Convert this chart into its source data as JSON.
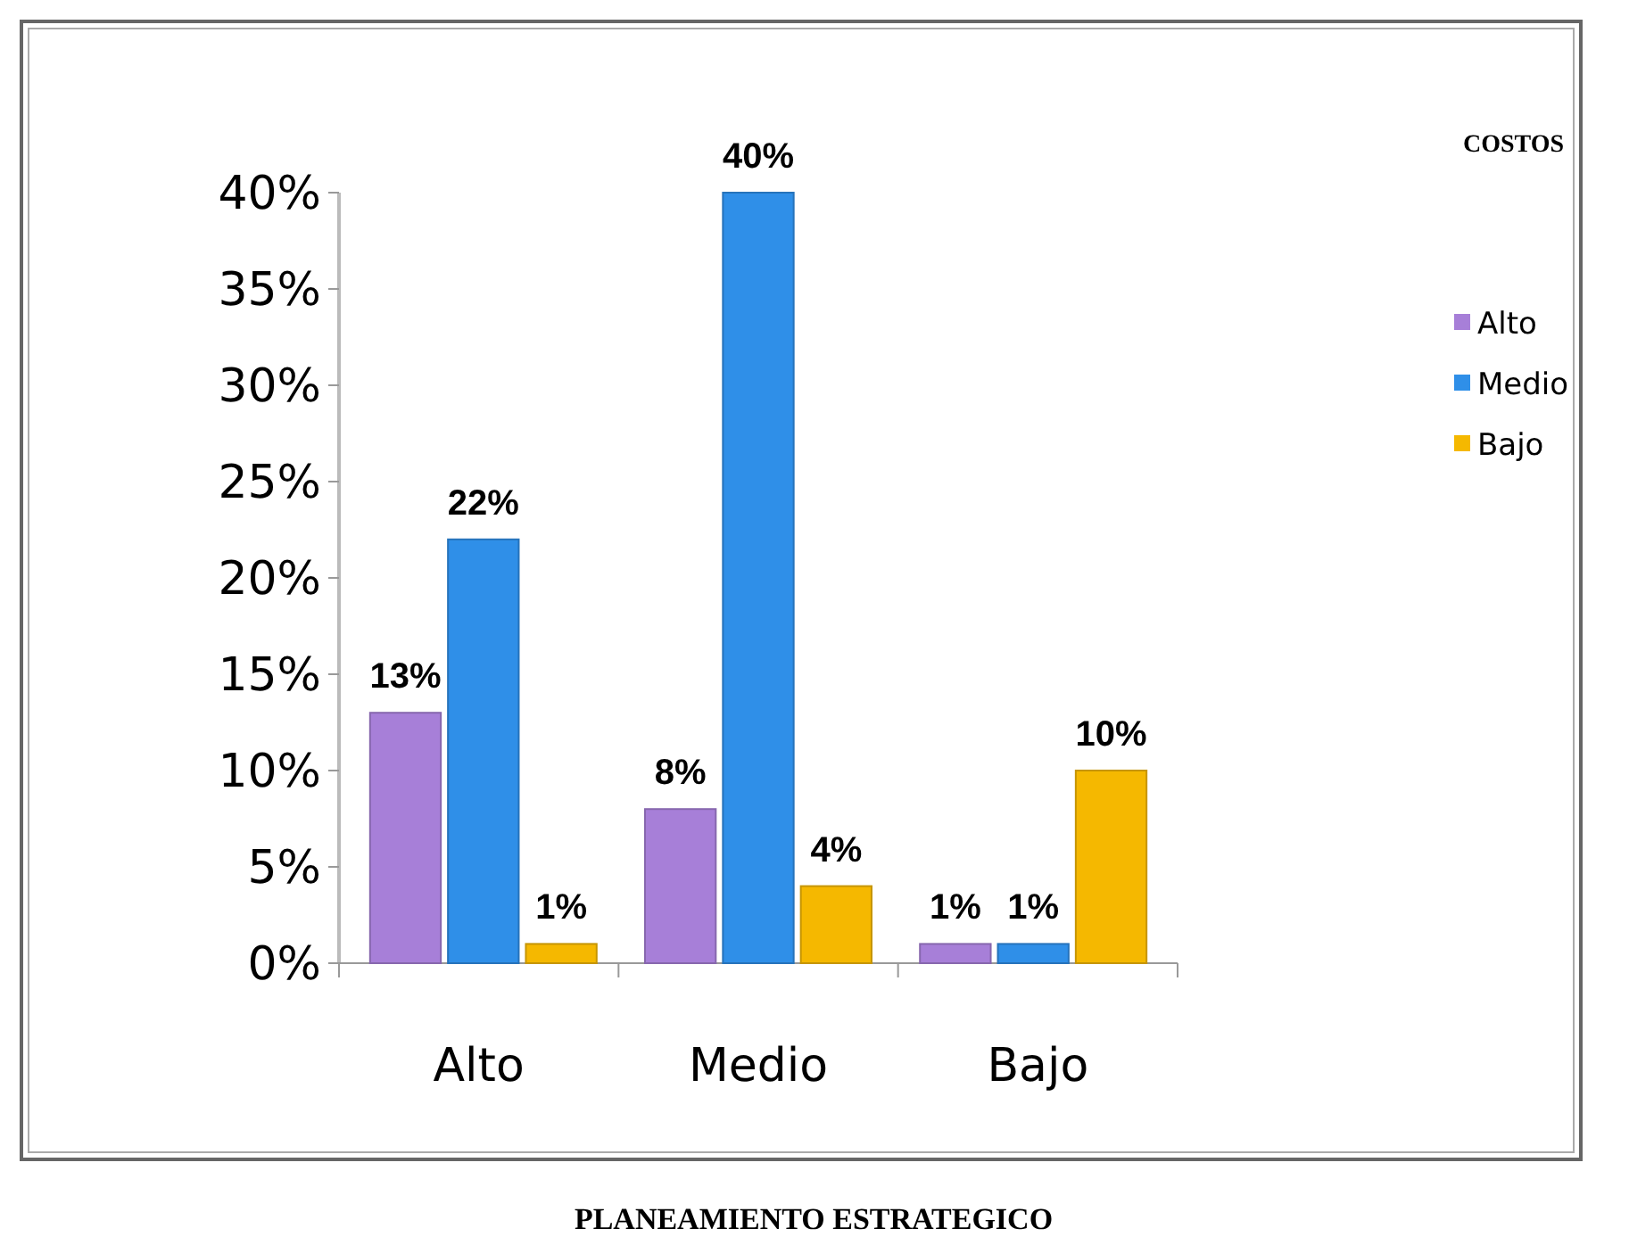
{
  "chart_data": {
    "type": "bar",
    "title": "PLANEAMIENTO ESTRATEGICO",
    "legend_title": "COSTOS",
    "categories": [
      "Alto",
      "Medio",
      "Bajo"
    ],
    "series": [
      {
        "name": "Alto",
        "color": "#a77fd8",
        "values": [
          13,
          8,
          1
        ],
        "value_labels": [
          "13%",
          "8%",
          "1%"
        ]
      },
      {
        "name": "Medio",
        "color": "#2f8fe8",
        "values": [
          22,
          40,
          1
        ],
        "value_labels": [
          "22%",
          "40%",
          "1%"
        ]
      },
      {
        "name": "Bajo",
        "color": "#f5b800",
        "values": [
          1,
          4,
          10
        ],
        "value_labels": [
          "1%",
          "4%",
          "10%"
        ]
      }
    ],
    "ylim": [
      0,
      40
    ],
    "yticks": [
      {
        "value": 0,
        "label": "0%"
      },
      {
        "value": 5,
        "label": "5%"
      },
      {
        "value": 10,
        "label": "10%"
      },
      {
        "value": 15,
        "label": "15%"
      },
      {
        "value": 20,
        "label": "20%"
      },
      {
        "value": 25,
        "label": "25%"
      },
      {
        "value": 30,
        "label": "30%"
      },
      {
        "value": 35,
        "label": "35%"
      },
      {
        "value": 40,
        "label": "40%"
      }
    ],
    "grid": false,
    "legend": "right"
  }
}
